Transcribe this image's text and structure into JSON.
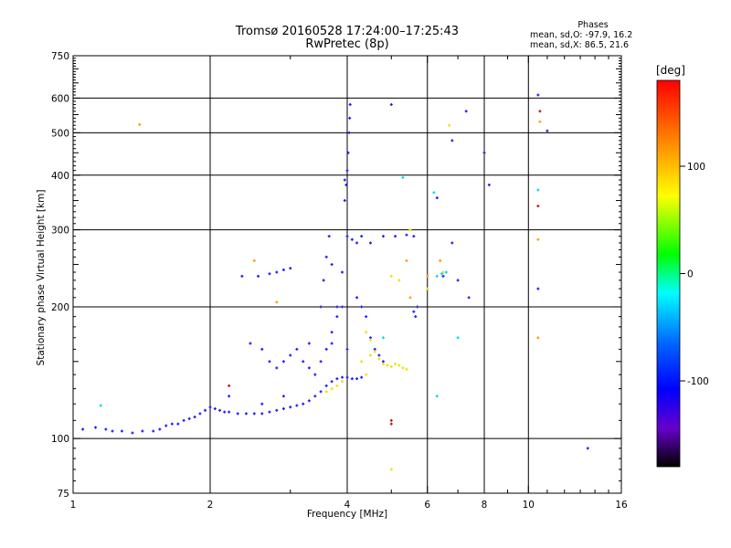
{
  "chart_data": {
    "type": "scatter",
    "title": "Tromsø 20160528 17:24:00–17:25:43",
    "subtitle": "RwPretec (8p)",
    "xlabel": "Frequency [MHz]",
    "ylabel": "Stationary phase Virtual Height [km]",
    "x_scale": "log",
    "y_scale": "log",
    "xlim": [
      1,
      16
    ],
    "ylim": [
      75,
      750
    ],
    "x_ticks": [
      1,
      2,
      4,
      6,
      8,
      10,
      16
    ],
    "y_ticks": [
      75,
      100,
      200,
      300,
      400,
      500,
      600,
      750
    ],
    "grid": true,
    "phase_stats": {
      "heading": "Phases",
      "line_o": "mean, sd,O: -97.9, 16.2",
      "line_x": "mean, sd,X:  86.5, 21.6"
    },
    "colorbar": {
      "unit": "[deg]",
      "range": [
        -180,
        180
      ],
      "ticks": [
        100,
        0,
        -100
      ]
    },
    "series": [
      {
        "points": [
          [
            1.05,
            105
          ],
          [
            1.12,
            106
          ],
          [
            1.18,
            105
          ],
          [
            1.22,
            104
          ],
          [
            1.28,
            104
          ],
          [
            1.35,
            103
          ],
          [
            1.42,
            104
          ],
          [
            1.5,
            104
          ],
          [
            1.55,
            105
          ],
          [
            1.6,
            107
          ],
          [
            1.65,
            108
          ],
          [
            1.7,
            108
          ],
          [
            1.75,
            110
          ],
          [
            1.8,
            111
          ],
          [
            1.85,
            112
          ],
          [
            1.9,
            114
          ],
          [
            1.95,
            116
          ],
          [
            2.0,
            118
          ],
          [
            2.05,
            117
          ],
          [
            2.1,
            116
          ],
          [
            2.15,
            115
          ],
          [
            2.2,
            115
          ],
          [
            2.3,
            114
          ],
          [
            2.4,
            114
          ],
          [
            2.5,
            114
          ],
          [
            2.6,
            114
          ],
          [
            2.7,
            115
          ],
          [
            2.8,
            116
          ],
          [
            2.9,
            117
          ],
          [
            3.0,
            118
          ],
          [
            3.1,
            119
          ],
          [
            3.2,
            120
          ],
          [
            3.3,
            122
          ],
          [
            3.4,
            125
          ],
          [
            3.5,
            128
          ],
          [
            3.6,
            132
          ],
          [
            3.7,
            135
          ],
          [
            3.8,
            137
          ],
          [
            3.9,
            138
          ],
          [
            4.0,
            138
          ],
          [
            4.1,
            137
          ],
          [
            4.2,
            137
          ],
          [
            4.3,
            138
          ],
          [
            2.35,
            235
          ],
          [
            2.55,
            235
          ],
          [
            2.7,
            238
          ],
          [
            2.8,
            240
          ],
          [
            2.9,
            243
          ],
          [
            3.0,
            245
          ],
          [
            2.45,
            165
          ],
          [
            2.6,
            160
          ],
          [
            2.7,
            150
          ],
          [
            2.8,
            145
          ],
          [
            2.9,
            150
          ],
          [
            3.0,
            155
          ],
          [
            3.1,
            160
          ],
          [
            3.2,
            150
          ],
          [
            3.3,
            145
          ],
          [
            3.4,
            140
          ],
          [
            3.5,
            150
          ],
          [
            3.6,
            160
          ],
          [
            3.7,
            175
          ],
          [
            3.8,
            190
          ],
          [
            3.9,
            200
          ],
          [
            3.5,
            200
          ],
          [
            3.55,
            230
          ],
          [
            3.6,
            260
          ],
          [
            3.65,
            290
          ],
          [
            3.7,
            250
          ],
          [
            3.8,
            200
          ],
          [
            3.9,
            240
          ],
          [
            3.95,
            350
          ],
          [
            3.98,
            380
          ],
          [
            4.0,
            410
          ],
          [
            4.02,
            450
          ],
          [
            4.04,
            500
          ],
          [
            4.05,
            540
          ],
          [
            4.06,
            580
          ],
          [
            3.95,
            390
          ],
          [
            4.0,
            290
          ],
          [
            4.1,
            285
          ],
          [
            4.2,
            280
          ],
          [
            4.3,
            290
          ],
          [
            4.5,
            280
          ],
          [
            4.8,
            290
          ],
          [
            5.1,
            290
          ],
          [
            5.4,
            292
          ],
          [
            5.6,
            290
          ],
          [
            4.2,
            210
          ],
          [
            4.3,
            200
          ],
          [
            4.4,
            190
          ],
          [
            4.5,
            170
          ],
          [
            4.6,
            160
          ],
          [
            4.7,
            155
          ],
          [
            4.8,
            150
          ],
          [
            5.6,
            195
          ],
          [
            5.7,
            200
          ],
          [
            5.65,
            190
          ],
          [
            6.3,
            355
          ],
          [
            6.5,
            235
          ],
          [
            7.0,
            230
          ],
          [
            10.5,
            610
          ],
          [
            11.0,
            505
          ],
          [
            10.5,
            220
          ],
          [
            6.8,
            480
          ],
          [
            7.3,
            560
          ],
          [
            8.0,
            450
          ],
          [
            2.9,
            125
          ],
          [
            2.6,
            120
          ],
          [
            2.2,
            125
          ],
          [
            13.5,
            95
          ],
          [
            5.0,
            580
          ],
          [
            8.2,
            380
          ],
          [
            6.8,
            280
          ],
          [
            7.4,
            210
          ],
          [
            4.0,
            160
          ],
          [
            3.7,
            165
          ],
          [
            3.3,
            165
          ]
        ]
      },
      {
        "points": [
          [
            4.3,
            150
          ],
          [
            4.5,
            155
          ],
          [
            4.6,
            158
          ],
          [
            4.7,
            152
          ],
          [
            4.8,
            148
          ],
          [
            4.9,
            147
          ],
          [
            5.0,
            146
          ],
          [
            5.1,
            148
          ],
          [
            5.2,
            147
          ],
          [
            5.3,
            145
          ],
          [
            5.4,
            144
          ],
          [
            4.4,
            175
          ],
          [
            4.5,
            168
          ],
          [
            3.6,
            128
          ],
          [
            3.7,
            130
          ],
          [
            3.8,
            132
          ],
          [
            3.9,
            135
          ],
          [
            4.4,
            140
          ],
          [
            5.0,
            235
          ],
          [
            5.2,
            230
          ],
          [
            6.0,
            220
          ],
          [
            6.7,
            520
          ],
          [
            6.5,
            240
          ],
          [
            5.5,
            300
          ],
          [
            5.0,
            85
          ]
        ]
      },
      {
        "points": [
          [
            1.15,
            119
          ],
          [
            6.3,
            235
          ],
          [
            6.45,
            238
          ],
          [
            6.6,
            240
          ],
          [
            6.2,
            365
          ],
          [
            10.5,
            370
          ],
          [
            5.3,
            395
          ],
          [
            7.0,
            170
          ],
          [
            6.3,
            125
          ],
          [
            4.8,
            170
          ]
        ]
      },
      {
        "points": [
          [
            1.4,
            522
          ],
          [
            2.5,
            255
          ],
          [
            5.4,
            255
          ],
          [
            6.0,
            235
          ],
          [
            10.6,
            530
          ],
          [
            10.5,
            285
          ],
          [
            6.4,
            255
          ],
          [
            5.5,
            210
          ],
          [
            2.8,
            205
          ],
          [
            10.5,
            170
          ]
        ]
      },
      {
        "points": [
          [
            10.5,
            340
          ],
          [
            5.0,
            110
          ],
          [
            5.0,
            108
          ],
          [
            2.2,
            132
          ],
          [
            10.6,
            560
          ]
        ]
      }
    ]
  }
}
